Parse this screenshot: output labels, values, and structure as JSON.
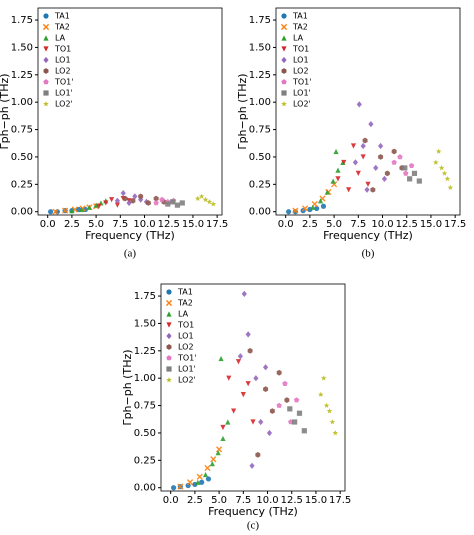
{
  "chart_data": [
    {
      "type": "scatter",
      "caption": "(a)",
      "x_label": "Frequency (THz)",
      "y_label": "Γph−ph (THz)",
      "xlim": [
        -1.0,
        18.0
      ],
      "ylim": [
        -0.03,
        1.86
      ],
      "xticks": [
        {
          "value": 0,
          "label": "0.0"
        },
        2.5,
        {
          "value": 5,
          "label": "5.0"
        },
        7.5,
        {
          "value": 10,
          "label": "10.0"
        },
        12.5,
        {
          "value": 15,
          "label": "15.0"
        },
        17.5
      ],
      "yticks": [
        {
          "value": 0,
          "label": "0.00"
        },
        0.25,
        {
          "value": 0.5,
          "label": "0.50"
        },
        0.75,
        {
          "value": 1,
          "label": "1.00"
        },
        1.25,
        {
          "value": 1.5,
          "label": "1.50"
        },
        1.75
      ],
      "legend": "upper left",
      "series": [
        {
          "name": "TA1",
          "color": "#1f77b4",
          "marker": "o",
          "x": [
            0.3,
            1.0,
            1.8,
            2.5,
            3.2,
            3.9
          ],
          "values": [
            0.0,
            0.0,
            0.01,
            0.01,
            0.02,
            0.02
          ]
        },
        {
          "name": "TA2",
          "color": "#ff7f0e",
          "marker": "x",
          "x": [
            0.8,
            1.8,
            2.8,
            3.6,
            4.3,
            5.0
          ],
          "values": [
            0.0,
            0.01,
            0.02,
            0.03,
            0.04,
            0.05
          ]
        },
        {
          "name": "LA",
          "color": "#2ca02c",
          "marker": "^",
          "x": [
            2.5,
            3.5,
            4.3,
            5.0,
            5.5,
            6.0
          ],
          "values": [
            0.01,
            0.02,
            0.04,
            0.06,
            0.08,
            0.1
          ]
        },
        {
          "name": "TO1",
          "color": "#d62728",
          "marker": "v",
          "x": [
            5.3,
            6.0,
            6.6,
            7.2,
            7.8,
            8.4
          ],
          "values": [
            0.05,
            0.08,
            0.11,
            0.06,
            0.12,
            0.1
          ]
        },
        {
          "name": "LO1",
          "color": "#9467bd",
          "marker": "D",
          "x": [
            7.2,
            7.8,
            8.4,
            9.0,
            9.6,
            10.2
          ],
          "values": [
            0.1,
            0.17,
            0.08,
            0.14,
            0.11,
            0.09
          ]
        },
        {
          "name": "LO2",
          "color": "#8c564b",
          "marker": "h",
          "x": [
            8.0,
            8.8,
            9.6,
            10.4,
            11.2,
            12.0
          ],
          "values": [
            0.12,
            0.1,
            0.14,
            0.08,
            0.12,
            0.09
          ]
        },
        {
          "name": "TO1'",
          "color": "#e377c2",
          "marker": "p",
          "x": [
            11.2,
            11.8,
            12.4,
            13.0
          ],
          "values": [
            0.08,
            0.11,
            0.09,
            0.1
          ]
        },
        {
          "name": "LO1'",
          "color": "#7f7f7f",
          "marker": "s",
          "x": [
            12.4,
            12.9,
            13.4,
            13.9
          ],
          "values": [
            0.07,
            0.09,
            0.06,
            0.08
          ]
        },
        {
          "name": "LO2'",
          "color": "#bcbd22",
          "marker": "*",
          "x": [
            15.5,
            15.9,
            16.3,
            16.7,
            17.1
          ],
          "values": [
            0.12,
            0.14,
            0.11,
            0.09,
            0.07
          ]
        }
      ]
    },
    {
      "type": "scatter",
      "caption": "(b)",
      "x_label": "Frequency (THz)",
      "y_label": "Γph−ph (THz)",
      "xlim": [
        -1.0,
        18.0
      ],
      "ylim": [
        -0.03,
        1.86
      ],
      "xticks": [
        {
          "value": 0,
          "label": "0.0"
        },
        2.5,
        {
          "value": 5,
          "label": "5.0"
        },
        7.5,
        {
          "value": 10,
          "label": "10.0"
        },
        12.5,
        {
          "value": 15,
          "label": "15.0"
        },
        17.5
      ],
      "yticks": [
        {
          "value": 0,
          "label": "0.00"
        },
        0.25,
        {
          "value": 0.5,
          "label": "0.50"
        },
        0.75,
        {
          "value": 1,
          "label": "1.00"
        },
        1.25,
        {
          "value": 1.5,
          "label": "1.50"
        },
        1.75
      ],
      "legend": "upper left",
      "series": [
        {
          "name": "TA1",
          "color": "#1f77b4",
          "marker": "o",
          "x": [
            0.3,
            1.0,
            1.8,
            2.5,
            3.2,
            3.9
          ],
          "values": [
            0.0,
            0.0,
            0.01,
            0.02,
            0.03,
            0.05
          ]
        },
        {
          "name": "TA2",
          "color": "#ff7f0e",
          "marker": "x",
          "x": [
            1.0,
            2.0,
            3.0,
            3.8,
            4.4,
            5.0
          ],
          "values": [
            0.01,
            0.03,
            0.07,
            0.12,
            0.18,
            0.25
          ]
        },
        {
          "name": "LA",
          "color": "#2ca02c",
          "marker": "^",
          "x": [
            2.8,
            3.6,
            4.3,
            4.9,
            5.4,
            5.9,
            5.2
          ],
          "values": [
            0.04,
            0.1,
            0.18,
            0.28,
            0.38,
            0.45,
            0.55
          ]
        },
        {
          "name": "TO1",
          "color": "#d62728",
          "marker": "v",
          "x": [
            5.4,
            6.0,
            6.5,
            7.0,
            7.5,
            8.0,
            8.5
          ],
          "values": [
            0.3,
            0.45,
            0.2,
            0.6,
            0.35,
            0.5,
            0.25
          ]
        },
        {
          "name": "LO1",
          "color": "#9467bd",
          "marker": "D",
          "x": [
            7.2,
            7.6,
            8.0,
            8.4,
            8.8,
            9.3,
            9.8,
            10.2
          ],
          "values": [
            0.45,
            0.98,
            0.6,
            0.2,
            0.8,
            0.4,
            0.6,
            0.3
          ]
        },
        {
          "name": "LO2",
          "color": "#8c564b",
          "marker": "h",
          "x": [
            8.2,
            9.0,
            9.8,
            10.5,
            11.2,
            12.0
          ],
          "values": [
            0.65,
            0.2,
            0.5,
            0.35,
            0.55,
            0.4
          ]
        },
        {
          "name": "TO1'",
          "color": "#e377c2",
          "marker": "p",
          "x": [
            11.2,
            11.8,
            12.4,
            13.0
          ],
          "values": [
            0.45,
            0.5,
            0.35,
            0.42
          ]
        },
        {
          "name": "LO1'",
          "color": "#7f7f7f",
          "marker": "s",
          "x": [
            12.3,
            12.8,
            13.3,
            13.8
          ],
          "values": [
            0.4,
            0.3,
            0.35,
            0.28
          ]
        },
        {
          "name": "LO2'",
          "color": "#bcbd22",
          "marker": "*",
          "x": [
            15.5,
            15.8,
            16.1,
            16.4,
            16.7,
            17.0
          ],
          "values": [
            0.45,
            0.55,
            0.4,
            0.35,
            0.3,
            0.22
          ]
        }
      ]
    },
    {
      "type": "scatter",
      "caption": "(c)",
      "x_label": "Frequency (THz)",
      "y_label": "Γph−ph (THz)",
      "xlim": [
        -1.0,
        18.0
      ],
      "ylim": [
        -0.03,
        1.86
      ],
      "xticks": [
        {
          "value": 0,
          "label": "0.0"
        },
        2.5,
        {
          "value": 5,
          "label": "5.0"
        },
        7.5,
        {
          "value": 10,
          "label": "10.0"
        },
        12.5,
        {
          "value": 15,
          "label": "15.0"
        },
        17.5
      ],
      "yticks": [
        {
          "value": 0,
          "label": "0.00"
        },
        0.25,
        {
          "value": 0.5,
          "label": "0.50"
        },
        0.75,
        {
          "value": 1,
          "label": "1.00"
        },
        1.25,
        {
          "value": 1.5,
          "label": "1.50"
        },
        1.75
      ],
      "legend": "upper left",
      "series": [
        {
          "name": "TA1",
          "color": "#1f77b4",
          "marker": "o",
          "x": [
            0.3,
            1.0,
            1.8,
            2.5,
            3.2,
            3.9
          ],
          "values": [
            0.0,
            0.01,
            0.02,
            0.03,
            0.05,
            0.08
          ]
        },
        {
          "name": "TA2",
          "color": "#ff7f0e",
          "marker": "x",
          "x": [
            1.0,
            2.0,
            3.0,
            3.8,
            4.4,
            5.0
          ],
          "values": [
            0.01,
            0.05,
            0.1,
            0.18,
            0.26,
            0.35
          ]
        },
        {
          "name": "LA",
          "color": "#2ca02c",
          "marker": "^",
          "x": [
            2.8,
            3.6,
            4.3,
            4.9,
            5.4,
            5.9,
            5.2
          ],
          "values": [
            0.05,
            0.12,
            0.22,
            0.32,
            0.45,
            0.6,
            1.18
          ]
        },
        {
          "name": "TO1",
          "color": "#d62728",
          "marker": "v",
          "x": [
            5.4,
            6.0,
            6.5,
            7.0,
            7.5,
            8.0,
            8.5
          ],
          "values": [
            0.55,
            1.0,
            0.7,
            1.15,
            0.85,
            0.95,
            0.6
          ]
        },
        {
          "name": "LO1",
          "color": "#9467bd",
          "marker": "D",
          "x": [
            7.2,
            7.6,
            8.0,
            8.4,
            8.8,
            9.3,
            9.8,
            10.2
          ],
          "values": [
            1.2,
            1.77,
            1.4,
            0.2,
            1.0,
            0.6,
            1.1,
            0.5
          ]
        },
        {
          "name": "LO2",
          "color": "#8c564b",
          "marker": "h",
          "x": [
            8.2,
            9.0,
            9.8,
            10.5,
            11.2,
            12.0
          ],
          "values": [
            1.25,
            0.3,
            0.9,
            0.7,
            1.05,
            0.8
          ]
        },
        {
          "name": "TO1'",
          "color": "#e377c2",
          "marker": "p",
          "x": [
            11.2,
            11.8,
            12.4,
            13.0
          ],
          "values": [
            0.75,
            0.95,
            0.6,
            0.8
          ]
        },
        {
          "name": "LO1'",
          "color": "#7f7f7f",
          "marker": "s",
          "x": [
            12.3,
            12.8,
            13.3,
            13.8
          ],
          "values": [
            0.72,
            0.6,
            0.68,
            0.52
          ]
        },
        {
          "name": "LO2'",
          "color": "#bcbd22",
          "marker": "*",
          "x": [
            15.5,
            15.8,
            16.1,
            16.4,
            16.7,
            17.0
          ],
          "values": [
            0.85,
            1.0,
            0.75,
            0.7,
            0.6,
            0.5
          ]
        }
      ]
    }
  ]
}
